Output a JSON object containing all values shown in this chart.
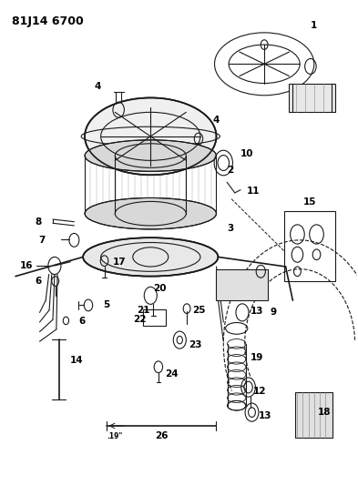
{
  "title": "81J14 6700",
  "bg_color": "#ffffff",
  "line_color": "#1a1a1a",
  "text_color": "#000000",
  "title_fontsize": 9,
  "label_fontsize": 7.5,
  "fig_width": 3.93,
  "fig_height": 5.33,
  "dpi": 100
}
